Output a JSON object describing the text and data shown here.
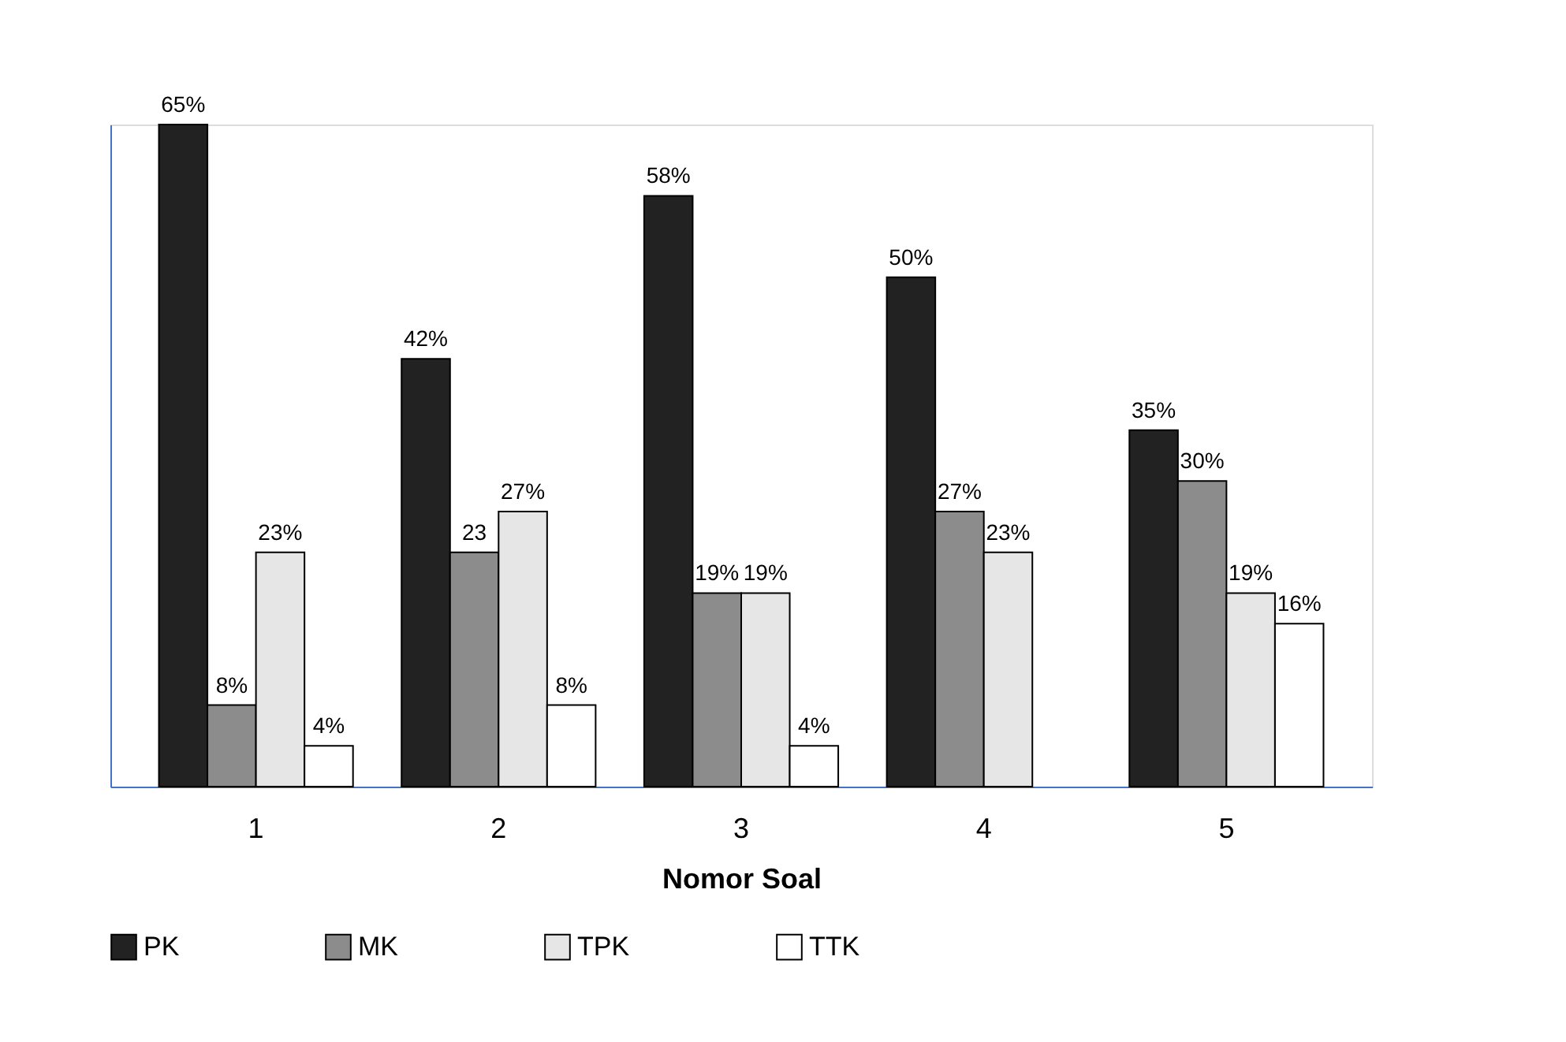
{
  "chart_data": {
    "type": "bar",
    "xlabel": "Nomor Soal",
    "categories": [
      "1",
      "2",
      "3",
      "4",
      "5"
    ],
    "ylim": [
      0,
      65
    ],
    "data_labels": true,
    "legend": "bottom",
    "grid": false,
    "series": [
      {
        "name": "PK",
        "color": "#222222",
        "values": [
          65,
          42,
          58,
          50,
          35
        ],
        "value_labels": [
          "65%",
          "42%",
          "58%",
          "50%",
          "35%"
        ]
      },
      {
        "name": "MK",
        "color": "#8c8c8c",
        "values": [
          8,
          23,
          19,
          27,
          30
        ],
        "value_labels": [
          "8%",
          "23",
          "19%",
          "27%",
          "30%"
        ]
      },
      {
        "name": "TPK",
        "color": "#e6e6e6",
        "values": [
          23,
          27,
          19,
          23,
          19
        ],
        "value_labels": [
          "23%",
          "27%",
          "19%",
          "23%",
          "19%"
        ]
      },
      {
        "name": "TTK",
        "color": "#ffffff",
        "values": [
          4,
          8,
          4,
          null,
          16
        ],
        "value_labels": [
          "4%",
          "8%",
          "4%",
          null,
          "16%"
        ]
      }
    ]
  }
}
